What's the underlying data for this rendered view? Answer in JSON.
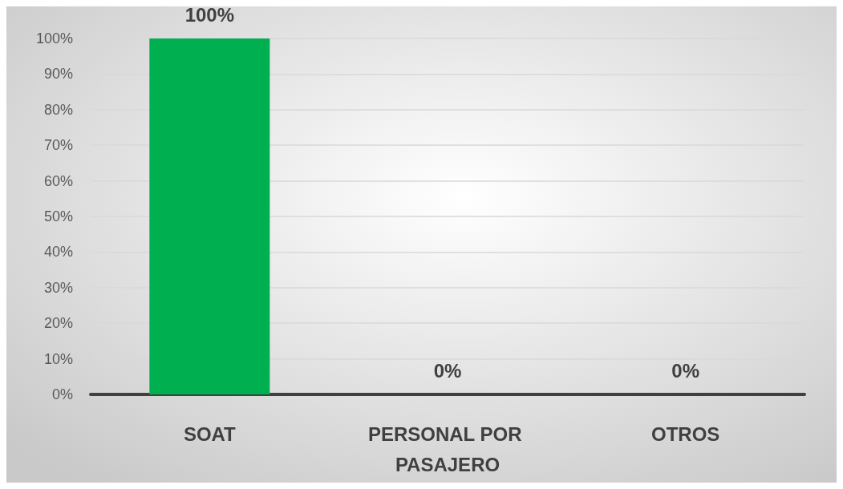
{
  "chart_data": {
    "type": "bar",
    "categories": [
      "SOAT",
      "PERSONAL POR PASAJERO",
      "OTROS"
    ],
    "values": [
      100,
      0,
      0
    ],
    "colors": [
      "#00b050",
      "#a50000",
      "#5f8536"
    ],
    "value_labels": [
      "100%",
      "0%",
      "0%"
    ],
    "ylim": [
      0,
      100
    ],
    "yticks": [
      {
        "value": 0,
        "label": "0%"
      },
      {
        "value": 10,
        "label": "10%"
      },
      {
        "value": 20,
        "label": "20%"
      },
      {
        "value": 30,
        "label": "30%"
      },
      {
        "value": 40,
        "label": "40%"
      },
      {
        "value": 50,
        "label": "50%"
      },
      {
        "value": 60,
        "label": "60%"
      },
      {
        "value": 70,
        "label": "70%"
      },
      {
        "value": 80,
        "label": "80%"
      },
      {
        "value": 90,
        "label": "90%"
      },
      {
        "value": 100,
        "label": "100%"
      }
    ],
    "grid": "y"
  }
}
